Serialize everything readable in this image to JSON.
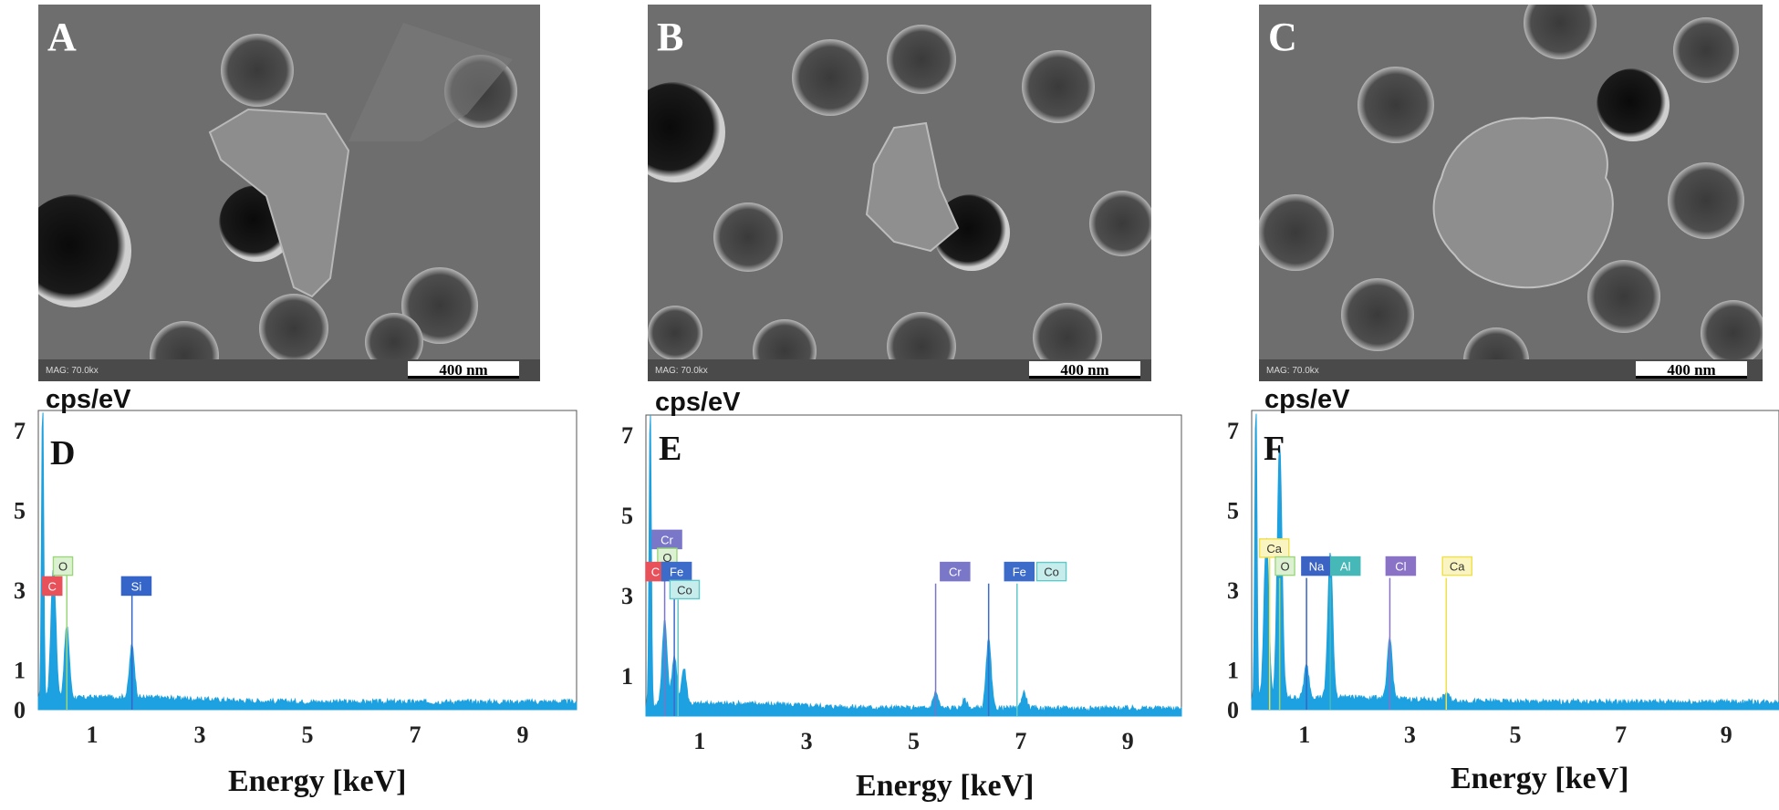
{
  "sem_panels": [
    {
      "letter": "A",
      "mag": "MAG: 70.0kx",
      "scale": "400 nm"
    },
    {
      "letter": "B",
      "mag": "MAG: 70.0kx",
      "scale": "400 nm"
    },
    {
      "letter": "C",
      "mag": "MAG: 70.0kx",
      "scale": "400 nm"
    }
  ],
  "colors": {
    "spectrum": "#1da1e0",
    "C": "#e8505a",
    "O": "#9bd77a",
    "Si": "#3565c8",
    "Cr": "#7a76c8",
    "Fe": "#3d6bc9",
    "Co": "#5fc8c9",
    "Na": "#3a63c4",
    "Al": "#46b8b8",
    "Cl": "#8a73c6",
    "Ca": "#f0e04a"
  },
  "chart_data": [
    {
      "type": "line",
      "panel": "D",
      "ylabel": "cps/eV",
      "xlabel": "Energy [keV]",
      "xlim": [
        0,
        10
      ],
      "ylim": [
        0,
        7.5
      ],
      "xticks": [
        1,
        3,
        5,
        7,
        9
      ],
      "yticks": [
        0,
        1,
        3,
        5,
        7
      ],
      "peaks": [
        {
          "x": 0.08,
          "y": 7.5
        },
        {
          "x": 0.28,
          "y": 3.3
        },
        {
          "x": 0.53,
          "y": 1.8
        },
        {
          "x": 1.74,
          "y": 1.3
        }
      ],
      "element_labels": [
        {
          "el": "C",
          "x": 0.08,
          "y": 3.1,
          "color": "C"
        },
        {
          "el": "O",
          "x": 0.28,
          "y": 3.6,
          "color": "O"
        },
        {
          "el": "Si",
          "x": 1.55,
          "y": 3.1,
          "color": "Si"
        }
      ],
      "element_lines": [
        {
          "x": 0.53,
          "top": 3.4,
          "color": "O"
        },
        {
          "x": 1.74,
          "top": 2.9,
          "color": "Si"
        }
      ]
    },
    {
      "type": "line",
      "panel": "E",
      "ylabel": "cps/eV",
      "xlabel": "Energy [keV]",
      "xlim": [
        0,
        10
      ],
      "ylim": [
        0,
        7.5
      ],
      "xticks": [
        1,
        3,
        5,
        7,
        9
      ],
      "yticks": [
        1,
        3,
        5,
        7
      ],
      "peaks": [
        {
          "x": 0.08,
          "y": 7.5
        },
        {
          "x": 0.35,
          "y": 2.1
        },
        {
          "x": 0.53,
          "y": 1.2
        },
        {
          "x": 0.71,
          "y": 0.9
        },
        {
          "x": 5.41,
          "y": 0.4
        },
        {
          "x": 5.95,
          "y": 0.2
        },
        {
          "x": 6.4,
          "y": 1.7
        },
        {
          "x": 7.06,
          "y": 0.4
        }
      ],
      "element_labels": [
        {
          "el": "Cr",
          "x": 0.12,
          "y": 4.4,
          "color": "Cr"
        },
        {
          "el": "O",
          "x": 0.22,
          "y": 3.95,
          "color": "O"
        },
        {
          "el": "C",
          "x": 0.0,
          "y": 3.6,
          "color": "C"
        },
        {
          "el": "Fe",
          "x": 0.3,
          "y": 3.6,
          "color": "Fe"
        },
        {
          "el": "Co",
          "x": 0.45,
          "y": 3.15,
          "color": "Co"
        },
        {
          "el": "Cr",
          "x": 5.5,
          "y": 3.6,
          "color": "Cr"
        },
        {
          "el": "Fe",
          "x": 6.7,
          "y": 3.6,
          "color": "Fe"
        },
        {
          "el": "Co",
          "x": 7.3,
          "y": 3.6,
          "color": "Co"
        }
      ],
      "element_lines": [
        {
          "x": 0.35,
          "top": 4.2,
          "color": "Cr"
        },
        {
          "x": 0.53,
          "top": 3.3,
          "color": "Fe"
        },
        {
          "x": 0.6,
          "top": 2.9,
          "color": "Co"
        },
        {
          "x": 5.41,
          "top": 3.3,
          "color": "Cr"
        },
        {
          "x": 6.4,
          "top": 3.3,
          "color": "Fe"
        },
        {
          "x": 6.93,
          "top": 3.3,
          "color": "Co"
        }
      ]
    },
    {
      "type": "line",
      "panel": "F",
      "ylabel": "cps/eV",
      "xlabel": "Energy [keV]",
      "xlim": [
        0,
        10
      ],
      "ylim": [
        0,
        7.5
      ],
      "xticks": [
        1,
        3,
        5,
        7,
        9
      ],
      "yticks": [
        0,
        1,
        3,
        5,
        7
      ],
      "peaks": [
        {
          "x": 0.08,
          "y": 7.5
        },
        {
          "x": 0.28,
          "y": 4.1
        },
        {
          "x": 0.53,
          "y": 6.3
        },
        {
          "x": 1.04,
          "y": 0.8
        },
        {
          "x": 1.49,
          "y": 3.6
        },
        {
          "x": 2.62,
          "y": 1.5
        },
        {
          "x": 3.69,
          "y": 0.2
        }
      ],
      "element_labels": [
        {
          "el": "Ca",
          "x": 0.15,
          "y": 4.05,
          "color": "Ca"
        },
        {
          "el": "O",
          "x": 0.45,
          "y": 3.6,
          "color": "O"
        },
        {
          "el": "Na",
          "x": 0.95,
          "y": 3.6,
          "color": "Na"
        },
        {
          "el": "Al",
          "x": 1.5,
          "y": 3.6,
          "color": "Al"
        },
        {
          "el": "Cl",
          "x": 2.55,
          "y": 3.6,
          "color": "Cl"
        },
        {
          "el": "Ca",
          "x": 3.62,
          "y": 3.6,
          "color": "Ca"
        }
      ],
      "element_lines": [
        {
          "x": 0.34,
          "top": 3.8,
          "color": "Ca"
        },
        {
          "x": 0.53,
          "top": 3.3,
          "color": "O"
        },
        {
          "x": 1.04,
          "top": 3.3,
          "color": "Na"
        },
        {
          "x": 1.49,
          "top": 3.3,
          "color": "Al"
        },
        {
          "x": 2.62,
          "top": 3.3,
          "color": "Cl"
        },
        {
          "x": 3.69,
          "top": 3.3,
          "color": "Ca"
        }
      ]
    }
  ]
}
